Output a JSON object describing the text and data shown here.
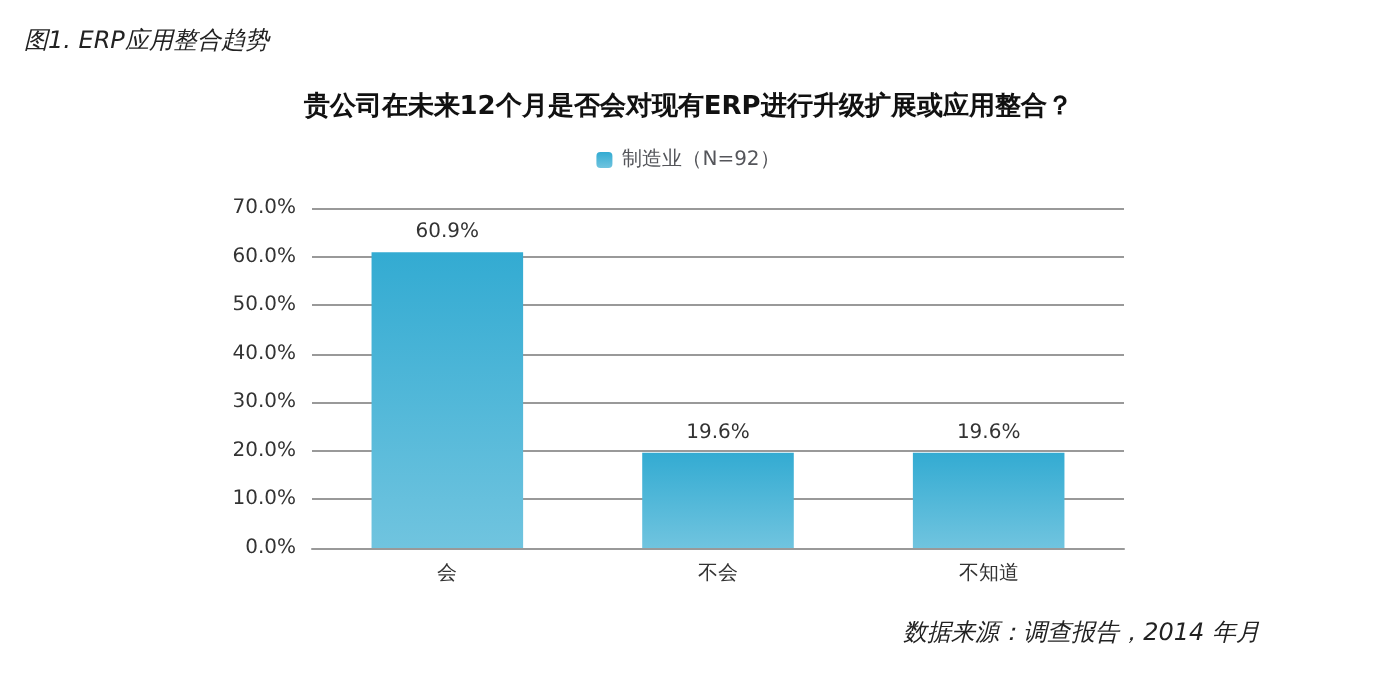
{
  "chart_data": {
    "type": "bar",
    "title": "贵公司在未来12个月是否会对现有ERP进行升级扩展或应用整合？",
    "categories": [
      "会",
      "不会",
      "不知道"
    ],
    "series": [
      {
        "name": "制造业（N=92）",
        "color": "#33abd2",
        "values": [
          60.9,
          19.6,
          19.6
        ],
        "value_labels": [
          "60.9%",
          "19.6%",
          "19.6%"
        ]
      }
    ],
    "ylim": [
      0,
      70
    ],
    "yticks": [
      {
        "value": 0,
        "label": "0.0%"
      },
      {
        "value": 10,
        "label": "10.0%"
      },
      {
        "value": 20,
        "label": "20.0%"
      },
      {
        "value": 30,
        "label": "30.0%"
      },
      {
        "value": 40,
        "label": "40.0%"
      },
      {
        "value": 50,
        "label": "50.0%"
      },
      {
        "value": 60,
        "label": "60.0%"
      },
      {
        "value": 70,
        "label": "70.0%"
      }
    ],
    "grid": "y",
    "legend": "top",
    "annotations": [
      "图1. ERP应用整合趋势",
      "数据来源：调查报告，2014 年月"
    ]
  }
}
